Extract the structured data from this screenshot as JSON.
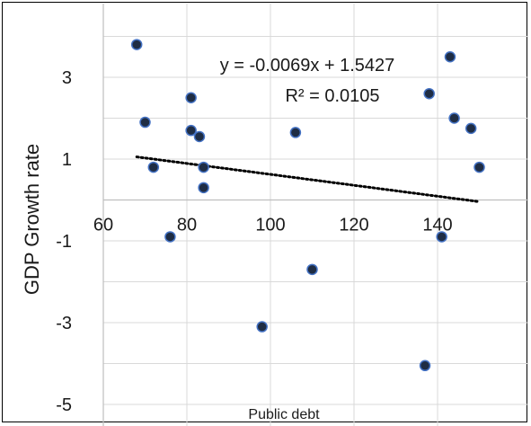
{
  "chart_data": {
    "type": "scatter",
    "xlabel": "Public debt",
    "ylabel": "GDP Growth rate",
    "x_ticks": [
      60,
      80,
      100,
      120,
      140
    ],
    "y_ticks": [
      3,
      1,
      -1,
      -3,
      -5
    ],
    "xlim": [
      60,
      153
    ],
    "ylim": [
      -5.5,
      4.5
    ],
    "x_axis_at": 0,
    "grid": true,
    "marker_fill": "#1f2d44",
    "marker_edge": "#4472c4",
    "trendline": {
      "type": "linear",
      "slope": -0.0069,
      "intercept": 1.5427,
      "x_range": [
        68,
        150
      ],
      "style": "dotted",
      "color": "#000000"
    },
    "annotations": [
      "y = -0.0069x + 1.5427",
      "R² = 0.0105"
    ],
    "points": [
      {
        "x": 68,
        "y": 3.8
      },
      {
        "x": 70,
        "y": 1.9
      },
      {
        "x": 72,
        "y": 0.8
      },
      {
        "x": 76,
        "y": -0.9
      },
      {
        "x": 81,
        "y": 2.5
      },
      {
        "x": 81,
        "y": 1.7
      },
      {
        "x": 83,
        "y": 1.55
      },
      {
        "x": 84,
        "y": 0.8
      },
      {
        "x": 84,
        "y": 0.3
      },
      {
        "x": 98,
        "y": -3.1
      },
      {
        "x": 106,
        "y": 1.65
      },
      {
        "x": 110,
        "y": -1.7
      },
      {
        "x": 137,
        "y": -4.05
      },
      {
        "x": 138,
        "y": 2.6
      },
      {
        "x": 141,
        "y": -0.9
      },
      {
        "x": 143,
        "y": 3.5
      },
      {
        "x": 144,
        "y": 2.0
      },
      {
        "x": 148,
        "y": 1.75
      },
      {
        "x": 150,
        "y": 0.8
      }
    ]
  }
}
